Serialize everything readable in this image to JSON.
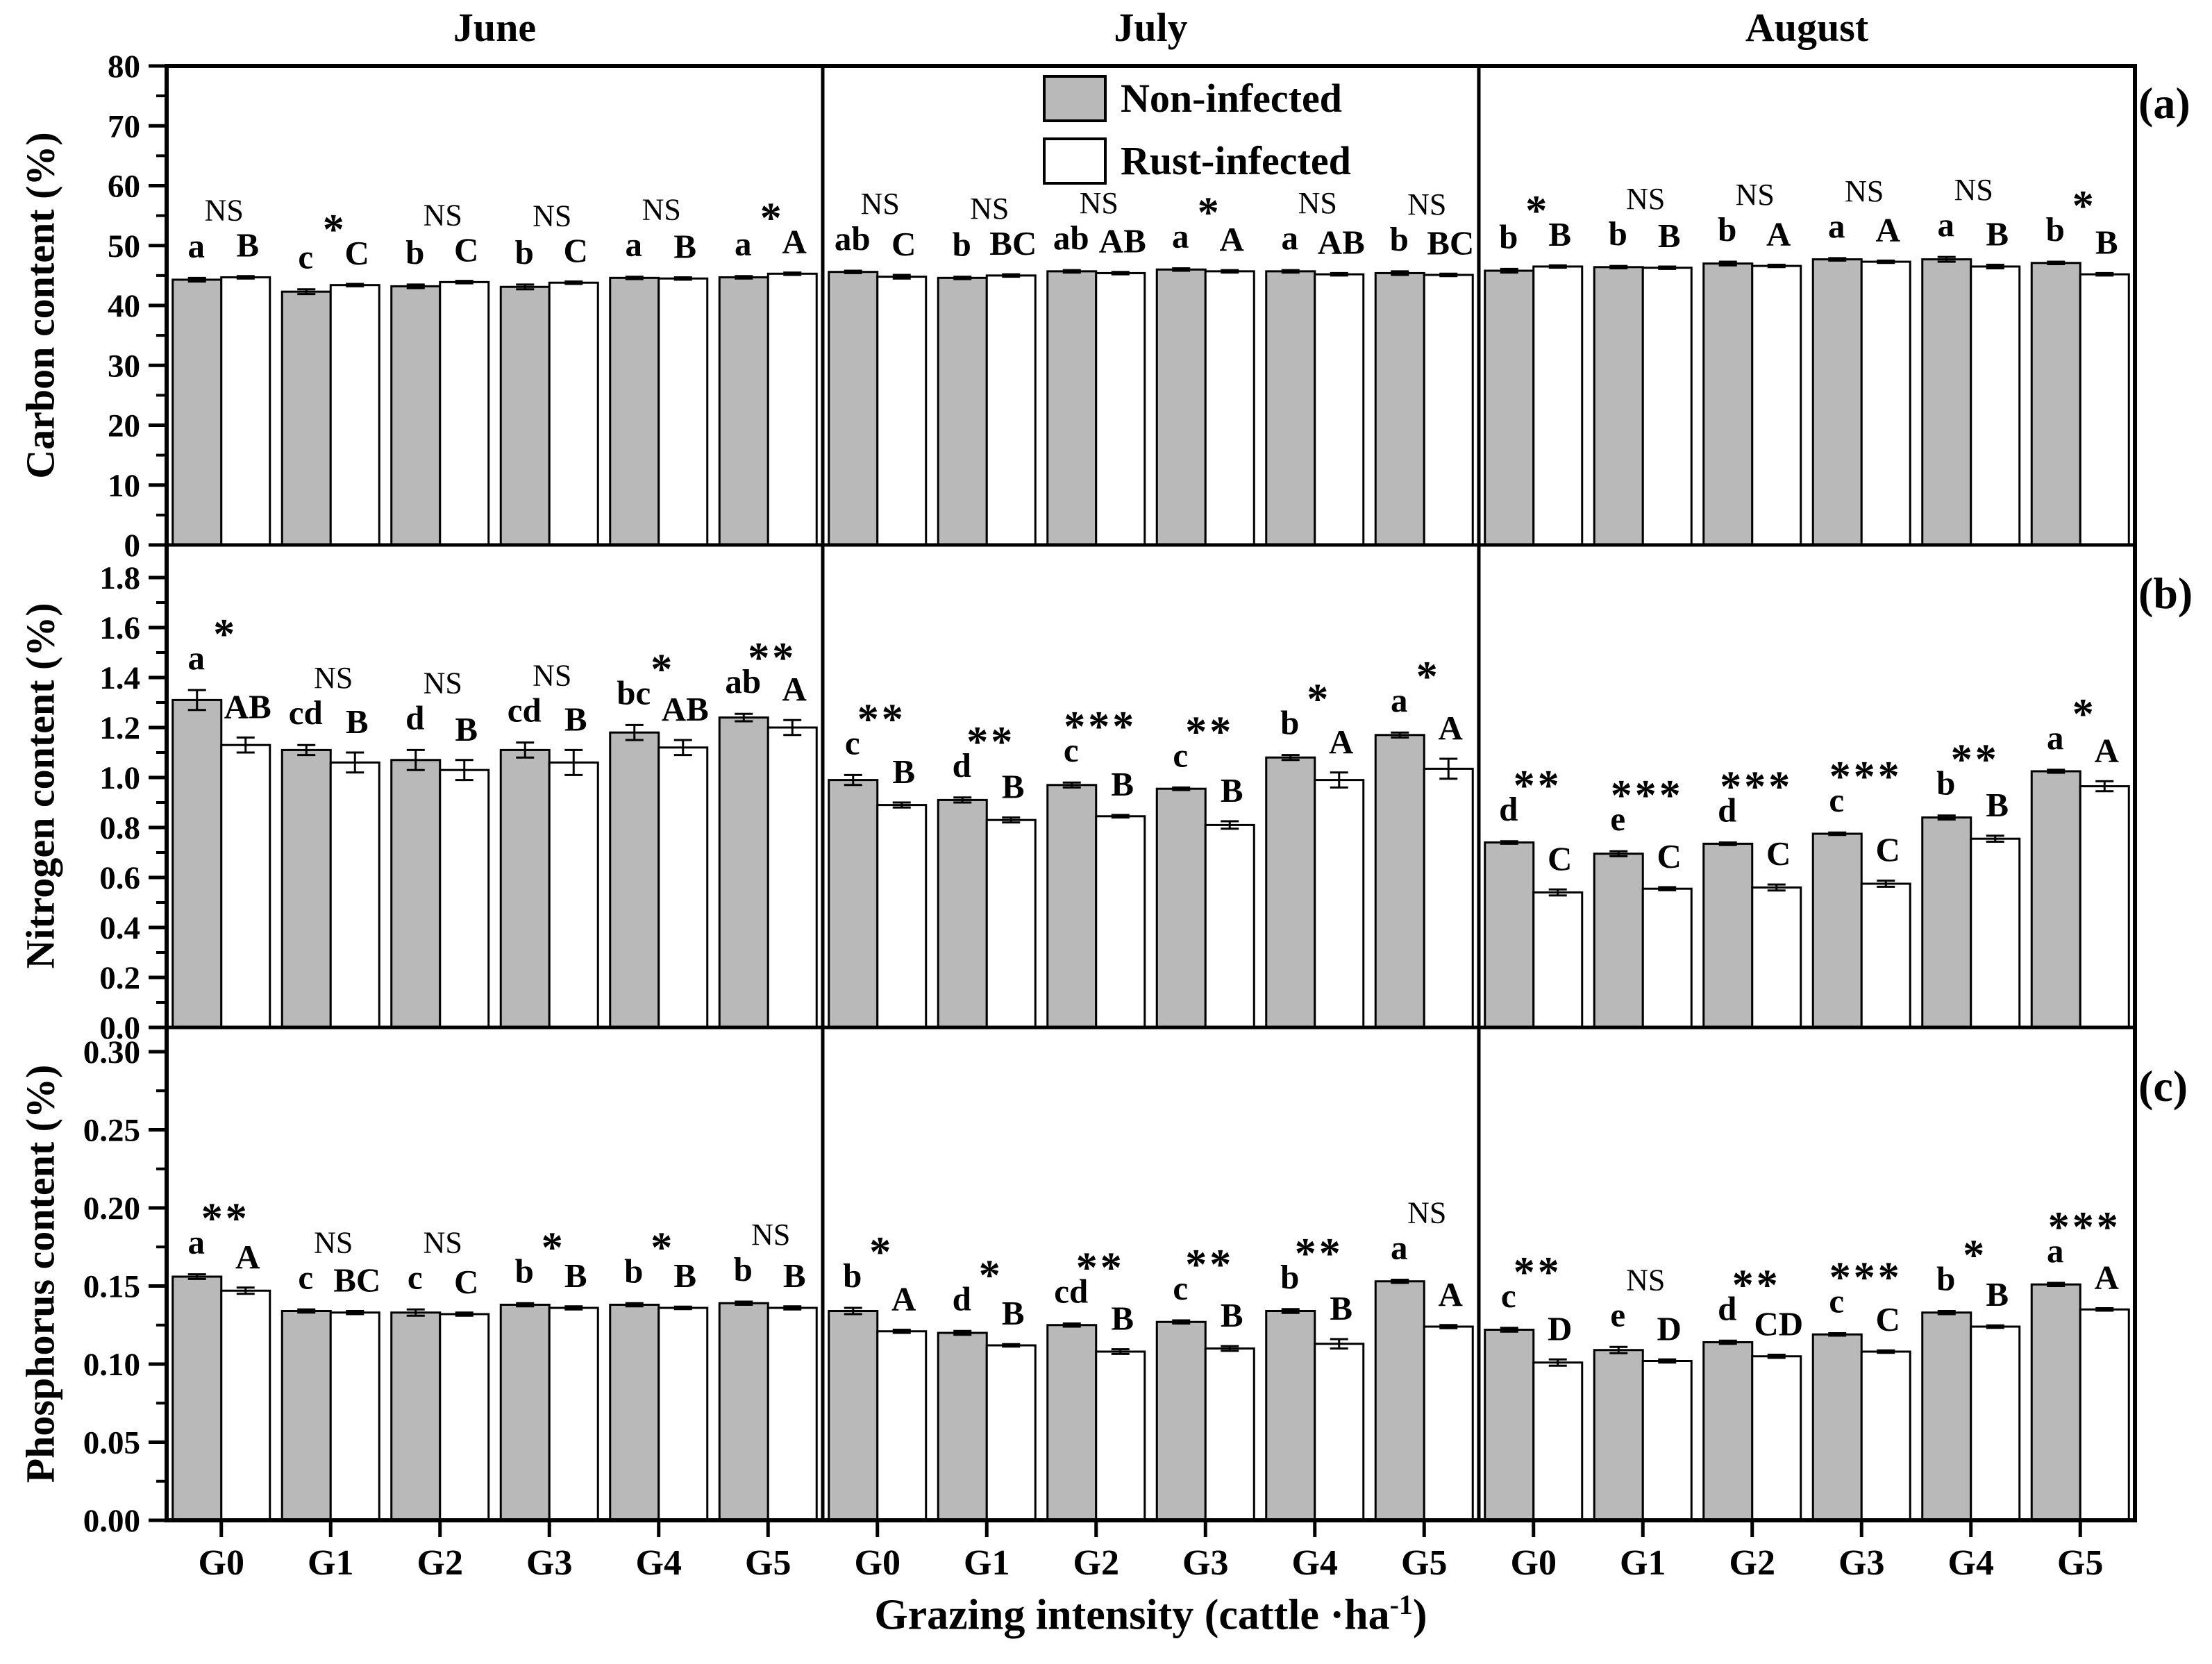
{
  "title_months": [
    "June",
    "July",
    "August"
  ],
  "legend": {
    "non_infected": "Non-infected",
    "rust_infected": "Rust-infected"
  },
  "panel_letters": [
    "(a)",
    "(b)",
    "(c)"
  ],
  "x_axis": {
    "categories": [
      "G0",
      "G1",
      "G2",
      "G3",
      "G4",
      "G5"
    ],
    "title_main": "Grazing intensity (cattle ·ha",
    "title_sup": "-1",
    "title_end": ")"
  },
  "colors": {
    "non_infected_fill": "#b9b9b9",
    "rust_infected_fill": "#ffffff",
    "stroke": "#000000"
  },
  "chart_data": [
    {
      "type": "bar",
      "ylabel": "Carbon content (%)",
      "ylim": [
        0,
        80
      ],
      "ytick_step": 10,
      "yminor_step": 5,
      "tick_decimals": 0,
      "series_names": [
        "Non-infected",
        "Rust-infected"
      ],
      "panels": [
        {
          "month": "June",
          "groups": [
            {
              "cat": "G0",
              "non": 44.3,
              "non_err": 0.3,
              "rust": 44.7,
              "rust_err": 0.2,
              "letter_non": "a",
              "sig": "NS",
              "letter_rust": "B"
            },
            {
              "cat": "G1",
              "non": 42.3,
              "non_err": 0.4,
              "rust": 43.4,
              "rust_err": 0.2,
              "letter_non": "c",
              "sig": "*",
              "letter_rust": "C"
            },
            {
              "cat": "G2",
              "non": 43.2,
              "non_err": 0.3,
              "rust": 43.9,
              "rust_err": 0.2,
              "letter_non": "b",
              "sig": "NS",
              "letter_rust": "C"
            },
            {
              "cat": "G3",
              "non": 43.1,
              "non_err": 0.4,
              "rust": 43.8,
              "rust_err": 0.2,
              "letter_non": "b",
              "sig": "NS",
              "letter_rust": "C"
            },
            {
              "cat": "G4",
              "non": 44.6,
              "non_err": 0.2,
              "rust": 44.5,
              "rust_err": 0.2,
              "letter_non": "a",
              "sig": "NS",
              "letter_rust": "B"
            },
            {
              "cat": "G5",
              "non": 44.7,
              "non_err": 0.2,
              "rust": 45.3,
              "rust_err": 0.2,
              "letter_non": "a",
              "sig": "*",
              "letter_rust": "A"
            }
          ]
        },
        {
          "month": "July",
          "groups": [
            {
              "cat": "G0",
              "non": 45.6,
              "non_err": 0.2,
              "rust": 44.8,
              "rust_err": 0.3,
              "letter_non": "ab",
              "sig": "NS",
              "letter_rust": "C"
            },
            {
              "cat": "G1",
              "non": 44.6,
              "non_err": 0.2,
              "rust": 45.0,
              "rust_err": 0.2,
              "letter_non": "b",
              "sig": "NS",
              "letter_rust": "BC"
            },
            {
              "cat": "G2",
              "non": 45.7,
              "non_err": 0.2,
              "rust": 45.4,
              "rust_err": 0.2,
              "letter_non": "ab",
              "sig": "NS",
              "letter_rust": "AB"
            },
            {
              "cat": "G3",
              "non": 46.0,
              "non_err": 0.2,
              "rust": 45.7,
              "rust_err": 0.2,
              "letter_non": "a",
              "sig": "*",
              "letter_rust": "A"
            },
            {
              "cat": "G4",
              "non": 45.7,
              "non_err": 0.2,
              "rust": 45.2,
              "rust_err": 0.2,
              "letter_non": "a",
              "sig": "NS",
              "letter_rust": "AB"
            },
            {
              "cat": "G5",
              "non": 45.4,
              "non_err": 0.3,
              "rust": 45.1,
              "rust_err": 0.2,
              "letter_non": "b",
              "sig": "NS",
              "letter_rust": "BC"
            }
          ]
        },
        {
          "month": "August",
          "groups": [
            {
              "cat": "G0",
              "non": 45.8,
              "non_err": 0.3,
              "rust": 46.5,
              "rust_err": 0.2,
              "letter_non": "b",
              "sig": "*",
              "letter_rust": "B"
            },
            {
              "cat": "G1",
              "non": 46.4,
              "non_err": 0.2,
              "rust": 46.3,
              "rust_err": 0.2,
              "letter_non": "b",
              "sig": "NS",
              "letter_rust": "B"
            },
            {
              "cat": "G2",
              "non": 47.0,
              "non_err": 0.3,
              "rust": 46.6,
              "rust_err": 0.2,
              "letter_non": "b",
              "sig": "NS",
              "letter_rust": "A"
            },
            {
              "cat": "G3",
              "non": 47.7,
              "non_err": 0.2,
              "rust": 47.3,
              "rust_err": 0.2,
              "letter_non": "a",
              "sig": "NS",
              "letter_rust": "A"
            },
            {
              "cat": "G4",
              "non": 47.7,
              "non_err": 0.4,
              "rust": 46.5,
              "rust_err": 0.3,
              "letter_non": "a",
              "sig": "NS",
              "letter_rust": "B"
            },
            {
              "cat": "G5",
              "non": 47.1,
              "non_err": 0.2,
              "rust": 45.2,
              "rust_err": 0.2,
              "letter_non": "b",
              "sig": "*",
              "letter_rust": "B"
            }
          ]
        }
      ]
    },
    {
      "type": "bar",
      "ylabel": "Nitrogen content (%)",
      "ylim": [
        0,
        1.8
      ],
      "ytick_step": 0.2,
      "yminor_step": 0.1,
      "tick_decimals": 1,
      "series_names": [
        "Non-infected",
        "Rust-infected"
      ],
      "panels": [
        {
          "month": "June",
          "groups": [
            {
              "cat": "G0",
              "non": 1.31,
              "non_err": 0.04,
              "rust": 1.13,
              "rust_err": 0.03,
              "letter_non": "a",
              "sig": "*",
              "letter_rust": "AB"
            },
            {
              "cat": "G1",
              "non": 1.11,
              "non_err": 0.02,
              "rust": 1.06,
              "rust_err": 0.04,
              "letter_non": "cd",
              "sig": "NS",
              "letter_rust": "B"
            },
            {
              "cat": "G2",
              "non": 1.07,
              "non_err": 0.04,
              "rust": 1.03,
              "rust_err": 0.04,
              "letter_non": "d",
              "sig": "NS",
              "letter_rust": "B"
            },
            {
              "cat": "G3",
              "non": 1.11,
              "non_err": 0.03,
              "rust": 1.06,
              "rust_err": 0.05,
              "letter_non": "cd",
              "sig": "NS",
              "letter_rust": "B"
            },
            {
              "cat": "G4",
              "non": 1.18,
              "non_err": 0.03,
              "rust": 1.12,
              "rust_err": 0.03,
              "letter_non": "bc",
              "sig": "*",
              "letter_rust": "AB"
            },
            {
              "cat": "G5",
              "non": 1.24,
              "non_err": 0.015,
              "rust": 1.2,
              "rust_err": 0.03,
              "letter_non": "ab",
              "sig": "**",
              "letter_rust": "A"
            }
          ]
        },
        {
          "month": "July",
          "groups": [
            {
              "cat": "G0",
              "non": 0.99,
              "non_err": 0.02,
              "rust": 0.89,
              "rust_err": 0.01,
              "letter_non": "c",
              "sig": "**",
              "letter_rust": "B"
            },
            {
              "cat": "G1",
              "non": 0.91,
              "non_err": 0.01,
              "rust": 0.83,
              "rust_err": 0.01,
              "letter_non": "d",
              "sig": "**",
              "letter_rust": "B"
            },
            {
              "cat": "G2",
              "non": 0.97,
              "non_err": 0.01,
              "rust": 0.845,
              "rust_err": 0.005,
              "letter_non": "c",
              "sig": "***",
              "letter_rust": "B"
            },
            {
              "cat": "G3",
              "non": 0.955,
              "non_err": 0.005,
              "rust": 0.81,
              "rust_err": 0.015,
              "letter_non": "c",
              "sig": "**",
              "letter_rust": "B"
            },
            {
              "cat": "G4",
              "non": 1.08,
              "non_err": 0.01,
              "rust": 0.99,
              "rust_err": 0.03,
              "letter_non": "b",
              "sig": "*",
              "letter_rust": "A"
            },
            {
              "cat": "G5",
              "non": 1.17,
              "non_err": 0.01,
              "rust": 1.035,
              "rust_err": 0.04,
              "letter_non": "a",
              "sig": "*",
              "letter_rust": "A"
            }
          ]
        },
        {
          "month": "August",
          "groups": [
            {
              "cat": "G0",
              "non": 0.74,
              "non_err": 0.005,
              "rust": 0.54,
              "rust_err": 0.012,
              "letter_non": "d",
              "sig": "**",
              "letter_rust": "C"
            },
            {
              "cat": "G1",
              "non": 0.695,
              "non_err": 0.01,
              "rust": 0.555,
              "rust_err": 0.006,
              "letter_non": "e",
              "sig": "***",
              "letter_rust": "C"
            },
            {
              "cat": "G2",
              "non": 0.735,
              "non_err": 0.005,
              "rust": 0.56,
              "rust_err": 0.012,
              "letter_non": "d",
              "sig": "***",
              "letter_rust": "C"
            },
            {
              "cat": "G3",
              "non": 0.775,
              "non_err": 0.005,
              "rust": 0.575,
              "rust_err": 0.012,
              "letter_non": "c",
              "sig": "***",
              "letter_rust": "C"
            },
            {
              "cat": "G4",
              "non": 0.84,
              "non_err": 0.008,
              "rust": 0.755,
              "rust_err": 0.012,
              "letter_non": "b",
              "sig": "**",
              "letter_rust": "B"
            },
            {
              "cat": "G5",
              "non": 1.025,
              "non_err": 0.006,
              "rust": 0.965,
              "rust_err": 0.02,
              "letter_non": "a",
              "sig": "*",
              "letter_rust": "A"
            }
          ]
        }
      ]
    },
    {
      "type": "bar",
      "ylabel": "Phosphorus content (%)",
      "ylim": [
        0,
        0.3
      ],
      "ytick_step": 0.05,
      "yminor_step": 0.025,
      "tick_decimals": 2,
      "series_names": [
        "Non-infected",
        "Rust-infected"
      ],
      "panels": [
        {
          "month": "June",
          "groups": [
            {
              "cat": "G0",
              "non": 0.156,
              "non_err": 0.0015,
              "rust": 0.147,
              "rust_err": 0.002,
              "letter_non": "a",
              "sig": "**",
              "letter_rust": "A"
            },
            {
              "cat": "G1",
              "non": 0.134,
              "non_err": 0.001,
              "rust": 0.133,
              "rust_err": 0.001,
              "letter_non": "c",
              "sig": "NS",
              "letter_rust": "BC"
            },
            {
              "cat": "G2",
              "non": 0.133,
              "non_err": 0.002,
              "rust": 0.132,
              "rust_err": 0.001,
              "letter_non": "c",
              "sig": "NS",
              "letter_rust": "C"
            },
            {
              "cat": "G3",
              "non": 0.138,
              "non_err": 0.001,
              "rust": 0.136,
              "rust_err": 0.001,
              "letter_non": "b",
              "sig": "*",
              "letter_rust": "B"
            },
            {
              "cat": "G4",
              "non": 0.138,
              "non_err": 0.001,
              "rust": 0.136,
              "rust_err": 0.0008,
              "letter_non": "b",
              "sig": "*",
              "letter_rust": "B"
            },
            {
              "cat": "G5",
              "non": 0.139,
              "non_err": 0.001,
              "rust": 0.136,
              "rust_err": 0.001,
              "letter_non": "b",
              "sig": "NS",
              "letter_rust": "B"
            }
          ]
        },
        {
          "month": "July",
          "groups": [
            {
              "cat": "G0",
              "non": 0.134,
              "non_err": 0.002,
              "rust": 0.121,
              "rust_err": 0.001,
              "letter_non": "b",
              "sig": "*",
              "letter_rust": "A"
            },
            {
              "cat": "G1",
              "non": 0.12,
              "non_err": 0.0012,
              "rust": 0.112,
              "rust_err": 0.0008,
              "letter_non": "d",
              "sig": "*",
              "letter_rust": "B"
            },
            {
              "cat": "G2",
              "non": 0.125,
              "non_err": 0.001,
              "rust": 0.108,
              "rust_err": 0.0015,
              "letter_non": "cd",
              "sig": "**",
              "letter_rust": "B"
            },
            {
              "cat": "G3",
              "non": 0.127,
              "non_err": 0.001,
              "rust": 0.11,
              "rust_err": 0.0015,
              "letter_non": "c",
              "sig": "**",
              "letter_rust": "B"
            },
            {
              "cat": "G4",
              "non": 0.134,
              "non_err": 0.0012,
              "rust": 0.113,
              "rust_err": 0.003,
              "letter_non": "b",
              "sig": "**",
              "letter_rust": "B"
            },
            {
              "cat": "G5",
              "non": 0.153,
              "non_err": 0.001,
              "rust": 0.124,
              "rust_err": 0.001,
              "letter_non": "a",
              "sig": "NS",
              "letter_rust": "A"
            }
          ]
        },
        {
          "month": "August",
          "groups": [
            {
              "cat": "G0",
              "non": 0.122,
              "non_err": 0.0012,
              "rust": 0.101,
              "rust_err": 0.002,
              "letter_non": "c",
              "sig": "**",
              "letter_rust": "D"
            },
            {
              "cat": "G1",
              "non": 0.109,
              "non_err": 0.002,
              "rust": 0.102,
              "rust_err": 0.001,
              "letter_non": "e",
              "sig": "NS",
              "letter_rust": "D"
            },
            {
              "cat": "G2",
              "non": 0.114,
              "non_err": 0.001,
              "rust": 0.105,
              "rust_err": 0.001,
              "letter_non": "d",
              "sig": "**",
              "letter_rust": "CD"
            },
            {
              "cat": "G3",
              "non": 0.119,
              "non_err": 0.0008,
              "rust": 0.108,
              "rust_err": 0.0008,
              "letter_non": "c",
              "sig": "***",
              "letter_rust": "C"
            },
            {
              "cat": "G4",
              "non": 0.133,
              "non_err": 0.001,
              "rust": 0.124,
              "rust_err": 0.0008,
              "letter_non": "b",
              "sig": "*",
              "letter_rust": "B"
            },
            {
              "cat": "G5",
              "non": 0.151,
              "non_err": 0.001,
              "rust": 0.135,
              "rust_err": 0.0008,
              "letter_non": "a",
              "sig": "***",
              "letter_rust": "A"
            }
          ]
        }
      ]
    }
  ]
}
